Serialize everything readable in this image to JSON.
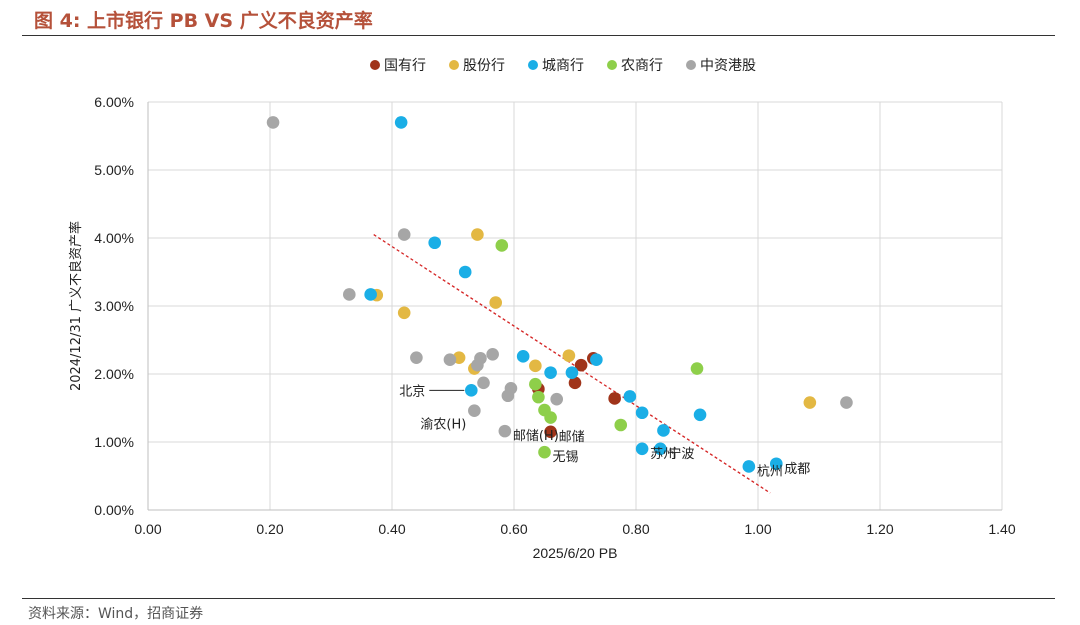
{
  "figure": {
    "title": "图 4: 上市银行 PB VS 广义不良资产率",
    "source": "资料来源：Wind，招商证券"
  },
  "colors": {
    "title": "#b5513a",
    "guozhi": "#a0341a",
    "gufen": "#e3b843",
    "chengshang": "#1aaee6",
    "nongshang": "#8ecf4a",
    "zhongzi": "#a6a6a6",
    "trend": "#d42020",
    "grid": "#d9d9d9"
  },
  "chart_data": {
    "type": "scatter",
    "xlabel": "2025/6/20 PB",
    "ylabel": "2024/12/31 广义不良资产率",
    "xlim": [
      0,
      1.4
    ],
    "ylim": [
      0,
      0.06
    ],
    "x_ticks": [
      "0.00",
      "0.20",
      "0.40",
      "0.60",
      "0.80",
      "1.00",
      "1.20",
      "1.40"
    ],
    "y_ticks": [
      "0.00%",
      "1.00%",
      "2.00%",
      "3.00%",
      "4.00%",
      "5.00%",
      "6.00%"
    ],
    "grid": "horizontal and vertical",
    "legend_position": "top",
    "trendline": {
      "style": "dashed",
      "from": [
        0.37,
        0.0405
      ],
      "to": [
        1.02,
        0.0025
      ]
    },
    "series": [
      {
        "name": "国有行",
        "color_key": "guozhi",
        "points": [
          [
            0.64,
            0.0178
          ],
          [
            0.66,
            0.0115
          ],
          [
            0.7,
            0.0187
          ],
          [
            0.71,
            0.0213
          ],
          [
            0.73,
            0.0223
          ],
          [
            0.765,
            0.0164
          ]
        ]
      },
      {
        "name": "股份行",
        "color_key": "gufen",
        "points": [
          [
            0.375,
            0.0316
          ],
          [
            0.42,
            0.029
          ],
          [
            0.51,
            0.0224
          ],
          [
            0.535,
            0.0208
          ],
          [
            0.54,
            0.0405
          ],
          [
            0.57,
            0.0305
          ],
          [
            0.635,
            0.0212
          ],
          [
            0.69,
            0.0227
          ],
          [
            1.085,
            0.0158
          ]
        ]
      },
      {
        "name": "城商行",
        "color_key": "chengshang",
        "points": [
          [
            0.365,
            0.0317
          ],
          [
            0.415,
            0.057
          ],
          [
            0.47,
            0.0393
          ],
          [
            0.52,
            0.035
          ],
          [
            0.53,
            0.0176
          ],
          [
            0.615,
            0.0226
          ],
          [
            0.66,
            0.0202
          ],
          [
            0.695,
            0.0202
          ],
          [
            0.735,
            0.0221
          ],
          [
            0.79,
            0.0167
          ],
          [
            0.81,
            0.0143
          ],
          [
            0.81,
            0.009
          ],
          [
            0.84,
            0.009
          ],
          [
            0.845,
            0.0117
          ],
          [
            0.905,
            0.014
          ],
          [
            0.985,
            0.0064
          ],
          [
            1.03,
            0.0068
          ]
        ]
      },
      {
        "name": "农商行",
        "color_key": "nongshang",
        "points": [
          [
            0.58,
            0.0389
          ],
          [
            0.635,
            0.0185
          ],
          [
            0.64,
            0.0166
          ],
          [
            0.65,
            0.0147
          ],
          [
            0.65,
            0.0085
          ],
          [
            0.66,
            0.0136
          ],
          [
            0.775,
            0.0125
          ],
          [
            0.9,
            0.0208
          ]
        ]
      },
      {
        "name": "中资港股",
        "color_key": "zhongzi",
        "points": [
          [
            0.205,
            0.057
          ],
          [
            0.33,
            0.0317
          ],
          [
            0.42,
            0.0405
          ],
          [
            0.44,
            0.0224
          ],
          [
            0.495,
            0.0221
          ],
          [
            0.535,
            0.0146
          ],
          [
            0.54,
            0.0213
          ],
          [
            0.545,
            0.0223
          ],
          [
            0.55,
            0.0187
          ],
          [
            0.565,
            0.0229
          ],
          [
            0.585,
            0.0116
          ],
          [
            0.59,
            0.0168
          ],
          [
            0.595,
            0.0179
          ],
          [
            0.67,
            0.0163
          ],
          [
            1.145,
            0.0158
          ]
        ]
      }
    ],
    "annotations": [
      {
        "text": "北京",
        "x": 0.53,
        "y": 0.0176,
        "anchor": "left"
      },
      {
        "text": "渝农(H)",
        "x": 0.535,
        "y": 0.0146,
        "anchor": "below-left"
      },
      {
        "text": "邮储(H)",
        "x": 0.585,
        "y": 0.0116,
        "anchor": "right"
      },
      {
        "text": "邮储",
        "x": 0.66,
        "y": 0.0115,
        "anchor": "right"
      },
      {
        "text": "无锡",
        "x": 0.65,
        "y": 0.0085,
        "anchor": "right"
      },
      {
        "text": "苏州",
        "x": 0.81,
        "y": 0.009,
        "anchor": "right"
      },
      {
        "text": "宁波",
        "x": 0.84,
        "y": 0.009,
        "anchor": "right"
      },
      {
        "text": "杭州",
        "x": 0.985,
        "y": 0.0064,
        "anchor": "right"
      },
      {
        "text": "成都",
        "x": 1.03,
        "y": 0.0068,
        "anchor": "right"
      }
    ]
  }
}
